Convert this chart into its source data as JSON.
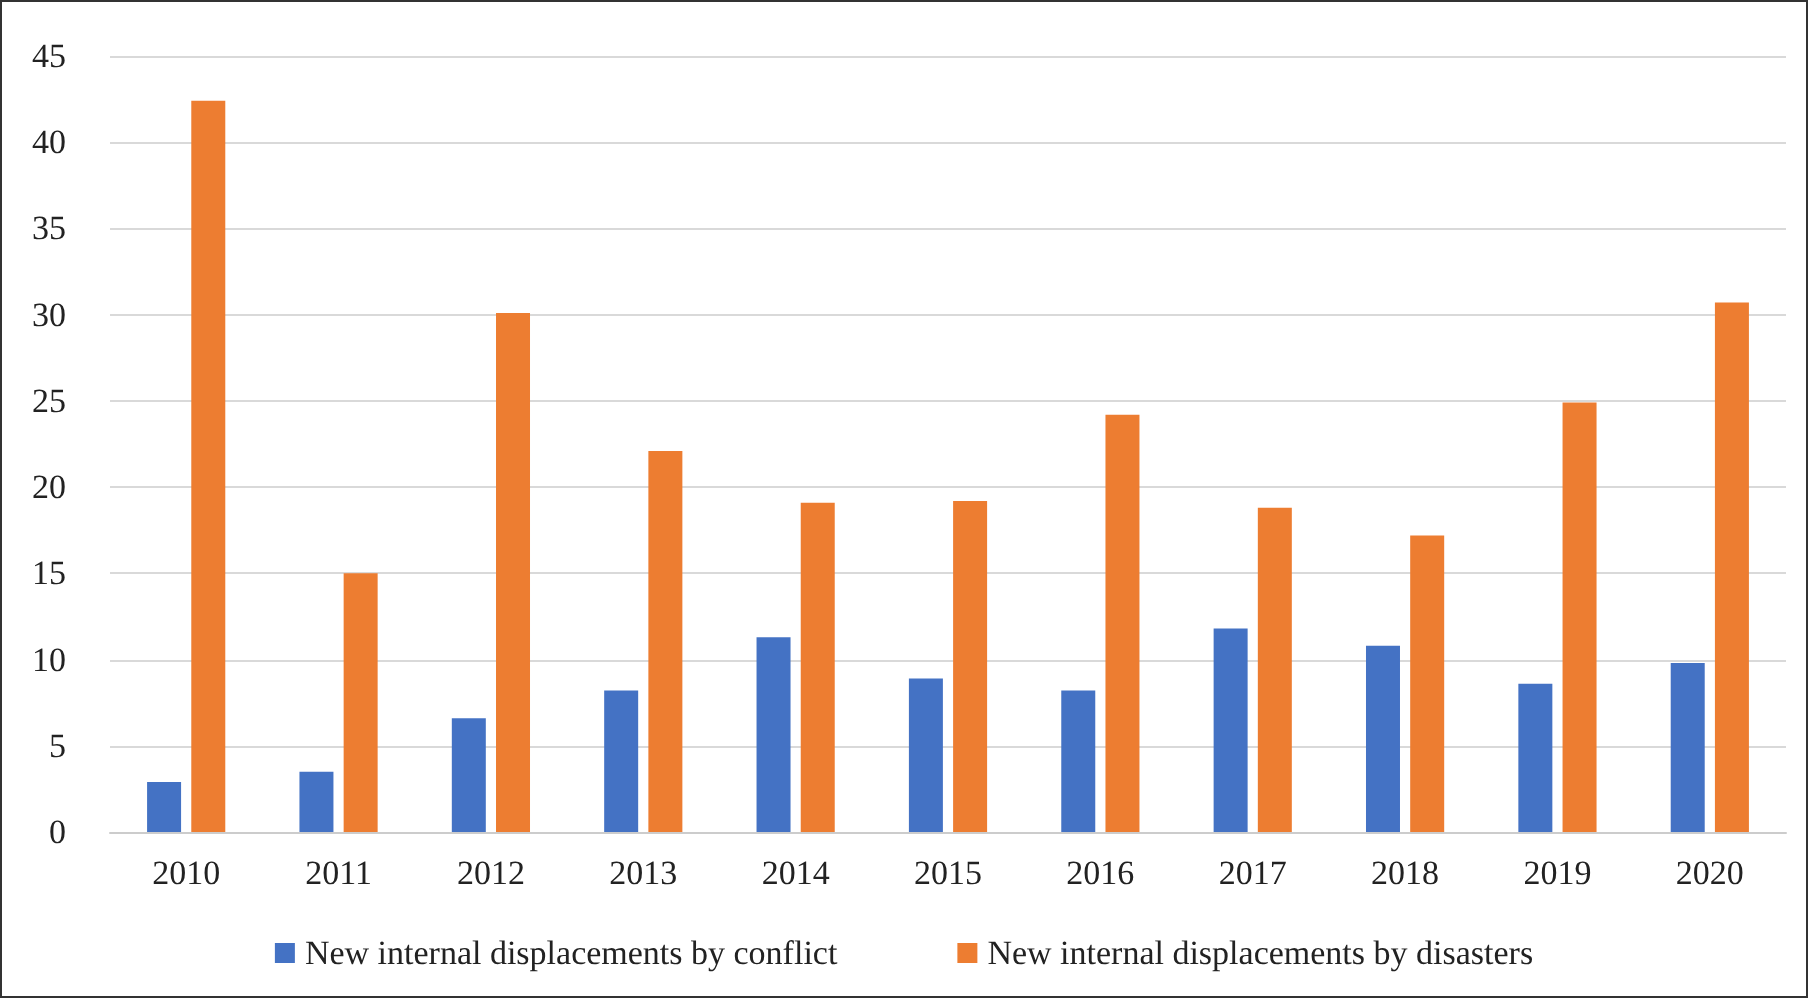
{
  "chart_data": {
    "type": "bar",
    "categories": [
      "2010",
      "2011",
      "2012",
      "2013",
      "2014",
      "2015",
      "2016",
      "2017",
      "2018",
      "2019",
      "2020"
    ],
    "series": [
      {
        "name": "New internal displacements by conflict",
        "color": "#4472c4",
        "values": [
          2.9,
          3.5,
          6.6,
          8.2,
          11.3,
          8.9,
          8.2,
          11.8,
          10.8,
          8.6,
          9.8
        ]
      },
      {
        "name": "New internal displacements by disasters",
        "color": "#ed7d31",
        "values": [
          42.4,
          15.0,
          30.1,
          22.1,
          19.1,
          19.2,
          24.2,
          18.8,
          17.2,
          24.9,
          30.7
        ]
      }
    ],
    "ylim": [
      0,
      45
    ],
    "yticks": [
      0,
      5,
      10,
      15,
      20,
      25,
      30,
      35,
      40,
      45
    ],
    "grid": "y",
    "legend": "bottom"
  }
}
